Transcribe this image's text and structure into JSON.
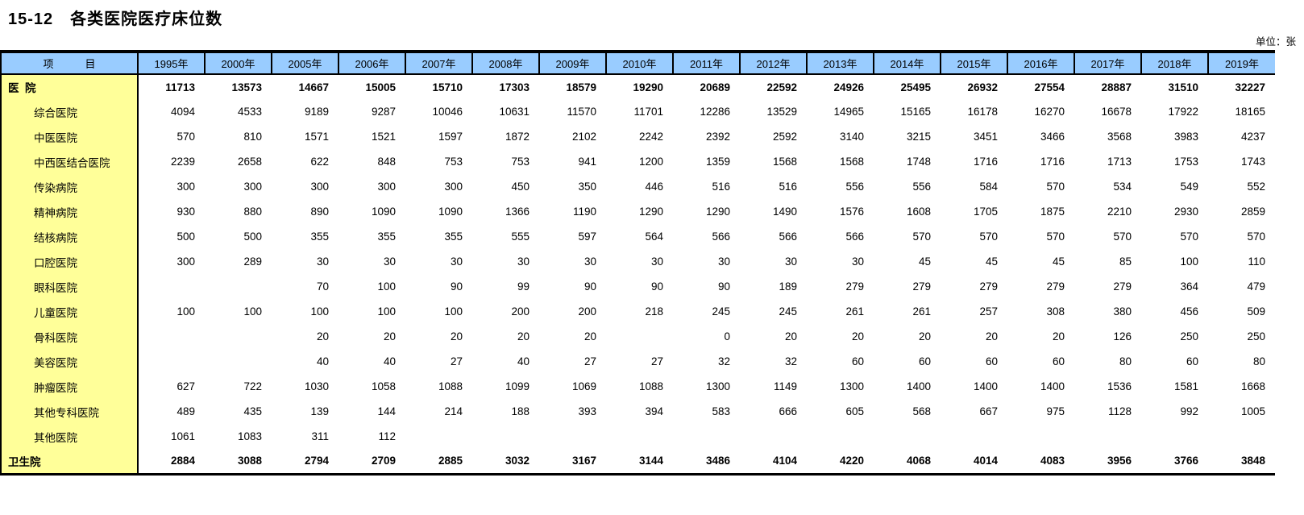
{
  "title": "15-12　各类医院医疗床位数",
  "unit_note": "单位：张",
  "colors": {
    "header_bg": "#99CCFF",
    "label_bg": "#FFFF99",
    "border": "#000000",
    "text": "#000000"
  },
  "table": {
    "item_header": "项　　　目",
    "years": [
      "1995年",
      "2000年",
      "2005年",
      "2006年",
      "2007年",
      "2008年",
      "2009年",
      "2010年",
      "2011年",
      "2012年",
      "2013年",
      "2014年",
      "2015年",
      "2016年",
      "2017年",
      "2018年",
      "2019年"
    ],
    "rows": [
      {
        "label": "医  院",
        "bold": true,
        "indent": false,
        "values": [
          "11713",
          "13573",
          "14667",
          "15005",
          "15710",
          "17303",
          "18579",
          "19290",
          "20689",
          "22592",
          "24926",
          "25495",
          "26932",
          "27554",
          "28887",
          "31510",
          "32227"
        ]
      },
      {
        "label": "综合医院",
        "bold": false,
        "indent": true,
        "values": [
          "4094",
          "4533",
          "9189",
          "9287",
          "10046",
          "10631",
          "11570",
          "11701",
          "12286",
          "13529",
          "14965",
          "15165",
          "16178",
          "16270",
          "16678",
          "17922",
          "18165"
        ]
      },
      {
        "label": "中医医院",
        "bold": false,
        "indent": true,
        "values": [
          "570",
          "810",
          "1571",
          "1521",
          "1597",
          "1872",
          "2102",
          "2242",
          "2392",
          "2592",
          "3140",
          "3215",
          "3451",
          "3466",
          "3568",
          "3983",
          "4237"
        ]
      },
      {
        "label": "中西医结合医院",
        "bold": false,
        "indent": true,
        "values": [
          "2239",
          "2658",
          "622",
          "848",
          "753",
          "753",
          "941",
          "1200",
          "1359",
          "1568",
          "1568",
          "1748",
          "1716",
          "1716",
          "1713",
          "1753",
          "1743"
        ]
      },
      {
        "label": "传染病院",
        "bold": false,
        "indent": true,
        "values": [
          "300",
          "300",
          "300",
          "300",
          "300",
          "450",
          "350",
          "446",
          "516",
          "516",
          "556",
          "556",
          "584",
          "570",
          "534",
          "549",
          "552"
        ]
      },
      {
        "label": "精神病院",
        "bold": false,
        "indent": true,
        "values": [
          "930",
          "880",
          "890",
          "1090",
          "1090",
          "1366",
          "1190",
          "1290",
          "1290",
          "1490",
          "1576",
          "1608",
          "1705",
          "1875",
          "2210",
          "2930",
          "2859"
        ]
      },
      {
        "label": "结核病院",
        "bold": false,
        "indent": true,
        "values": [
          "500",
          "500",
          "355",
          "355",
          "355",
          "555",
          "597",
          "564",
          "566",
          "566",
          "566",
          "570",
          "570",
          "570",
          "570",
          "570",
          "570"
        ]
      },
      {
        "label": "口腔医院",
        "bold": false,
        "indent": true,
        "values": [
          "300",
          "289",
          "30",
          "30",
          "30",
          "30",
          "30",
          "30",
          "30",
          "30",
          "30",
          "45",
          "45",
          "45",
          "85",
          "100",
          "110"
        ]
      },
      {
        "label": "眼科医院",
        "bold": false,
        "indent": true,
        "values": [
          "",
          "",
          "70",
          "100",
          "90",
          "99",
          "90",
          "90",
          "90",
          "189",
          "279",
          "279",
          "279",
          "279",
          "279",
          "364",
          "479"
        ]
      },
      {
        "label": "儿童医院",
        "bold": false,
        "indent": true,
        "values": [
          "100",
          "100",
          "100",
          "100",
          "100",
          "200",
          "200",
          "218",
          "245",
          "245",
          "261",
          "261",
          "257",
          "308",
          "380",
          "456",
          "509"
        ]
      },
      {
        "label": "骨科医院",
        "bold": false,
        "indent": true,
        "values": [
          "",
          "",
          "20",
          "20",
          "20",
          "20",
          "20",
          "",
          "0",
          "20",
          "20",
          "20",
          "20",
          "20",
          "126",
          "250",
          "250"
        ]
      },
      {
        "label": "美容医院",
        "bold": false,
        "indent": true,
        "values": [
          "",
          "",
          "40",
          "40",
          "27",
          "40",
          "27",
          "27",
          "32",
          "32",
          "60",
          "60",
          "60",
          "60",
          "80",
          "60",
          "80"
        ]
      },
      {
        "label": "肿瘤医院",
        "bold": false,
        "indent": true,
        "values": [
          "627",
          "722",
          "1030",
          "1058",
          "1088",
          "1099",
          "1069",
          "1088",
          "1300",
          "1149",
          "1300",
          "1400",
          "1400",
          "1400",
          "1536",
          "1581",
          "1668"
        ]
      },
      {
        "label": "其他专科医院",
        "bold": false,
        "indent": true,
        "values": [
          "489",
          "435",
          "139",
          "144",
          "214",
          "188",
          "393",
          "394",
          "583",
          "666",
          "605",
          "568",
          "667",
          "975",
          "1128",
          "992",
          "1005"
        ]
      },
      {
        "label": "其他医院",
        "bold": false,
        "indent": true,
        "values": [
          "1061",
          "1083",
          "311",
          "112",
          "",
          "",
          "",
          "",
          "",
          "",
          "",
          "",
          "",
          "",
          "",
          "",
          ""
        ]
      },
      {
        "label": "卫生院",
        "bold": true,
        "indent": false,
        "values": [
          "2884",
          "3088",
          "2794",
          "2709",
          "2885",
          "3032",
          "3167",
          "3144",
          "3486",
          "4104",
          "4220",
          "4068",
          "4014",
          "4083",
          "3956",
          "3766",
          "3848"
        ]
      }
    ]
  }
}
